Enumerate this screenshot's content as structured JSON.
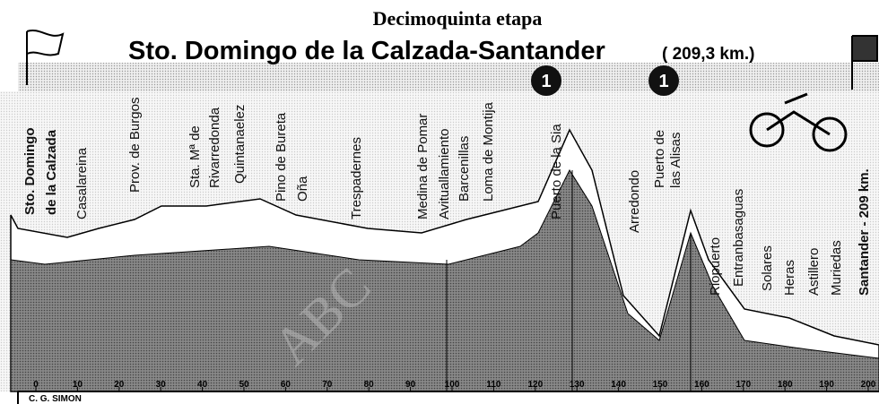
{
  "header": {
    "kicker": "Decimoquinta etapa",
    "title": "Sto. Domingo de la Calzada-Santander",
    "distance": "( 209,3 km.)"
  },
  "places": [
    [
      "Sto. Domingo",
      "de la Calzada"
    ],
    [
      "Casalareina"
    ],
    [
      "Prov. de Burgos"
    ],
    [
      "Sta. Mª de",
      "Rivarredonda"
    ],
    [
      "Quintanaelez"
    ],
    [
      "Pino de Bureta",
      "Oña"
    ],
    [
      "Trespadernes"
    ],
    [
      "Medina de Pomar"
    ],
    [
      "Avituallamiento"
    ],
    [
      "Barcenillas",
      "Loma de Montija"
    ],
    [
      "Puerto de la Sia"
    ],
    [
      "Arredondo"
    ],
    [
      "Puerto de",
      "las Alisas"
    ],
    [
      "Riopuerto"
    ],
    [
      "Entranbasaguas"
    ],
    [
      "Solares"
    ],
    [
      "Heras"
    ],
    [
      "Astillero"
    ],
    [
      "Muriedas"
    ],
    [
      "Santander - 209 km."
    ]
  ],
  "climbs": [
    "1",
    "1"
  ],
  "km_ticks": [
    0,
    10,
    20,
    30,
    40,
    50,
    60,
    70,
    80,
    90,
    100,
    110,
    120,
    130,
    140,
    150,
    160,
    170,
    180,
    190,
    200
  ],
  "credit": "C. G. SIMON",
  "watermark": "ABC"
}
